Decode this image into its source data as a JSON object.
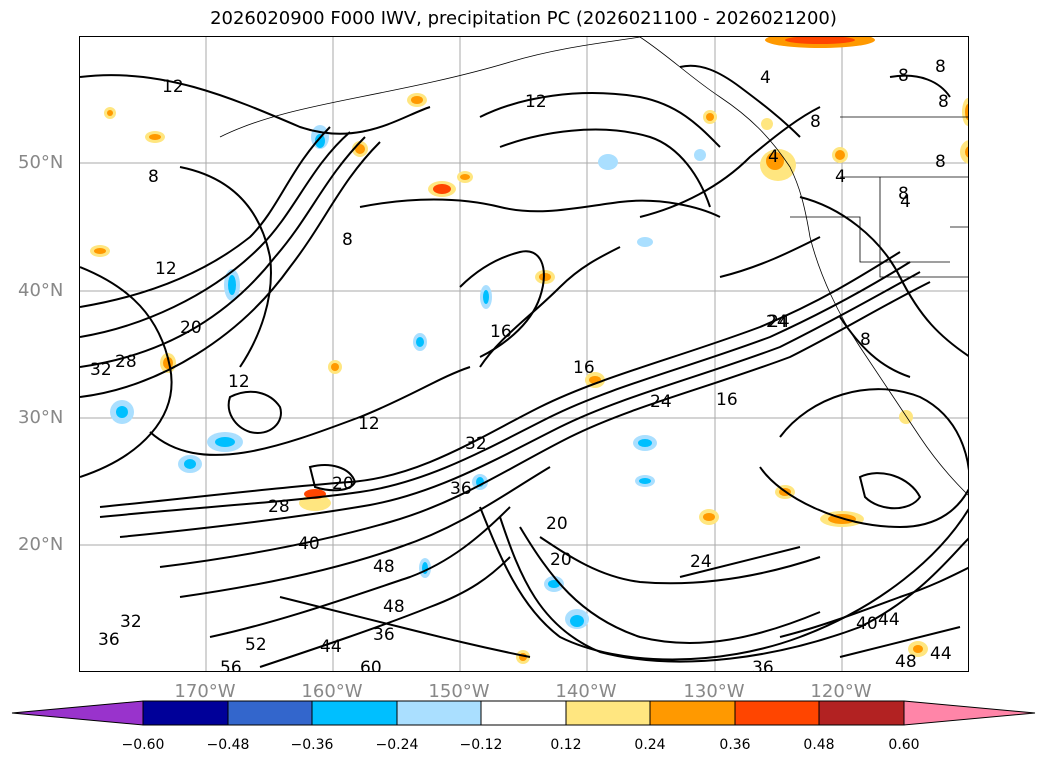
{
  "title": "2026020900 F000 IWV, precipitation PC (2026021100 - 2026021200)",
  "latitude_labels": [
    "50°N",
    "40°N",
    "30°N",
    "20°N"
  ],
  "longitude_labels": [
    "170°W",
    "160°W",
    "150°W",
    "140°W",
    "130°W",
    "120°W"
  ],
  "contour_labels": [
    "12",
    "12",
    "8",
    "8",
    "12",
    "16",
    "16",
    "24",
    "24",
    "16",
    "12",
    "12",
    "32",
    "28",
    "20",
    "28",
    "20",
    "36",
    "32",
    "20",
    "20",
    "24",
    "40",
    "48",
    "52",
    "48",
    "44",
    "36",
    "60",
    "56",
    "32",
    "36",
    "36",
    "40",
    "44",
    "48",
    "44",
    "8",
    "8",
    "8",
    "4",
    "4",
    "4",
    "4",
    "8",
    "8",
    "8",
    "24",
    "8"
  ],
  "colorbar": {
    "colors": [
      "#9933cc",
      "#000099",
      "#3366cc",
      "#00bfff",
      "#aadfff",
      "#ffffff",
      "#ffe680",
      "#ff9900",
      "#ff4500",
      "#b22222",
      "#ff85a8"
    ],
    "tick_labels": [
      "−0.60",
      "−0.48",
      "−0.36",
      "−0.24",
      "−0.12",
      "0.12",
      "0.24",
      "0.36",
      "0.48",
      "0.60"
    ]
  }
}
